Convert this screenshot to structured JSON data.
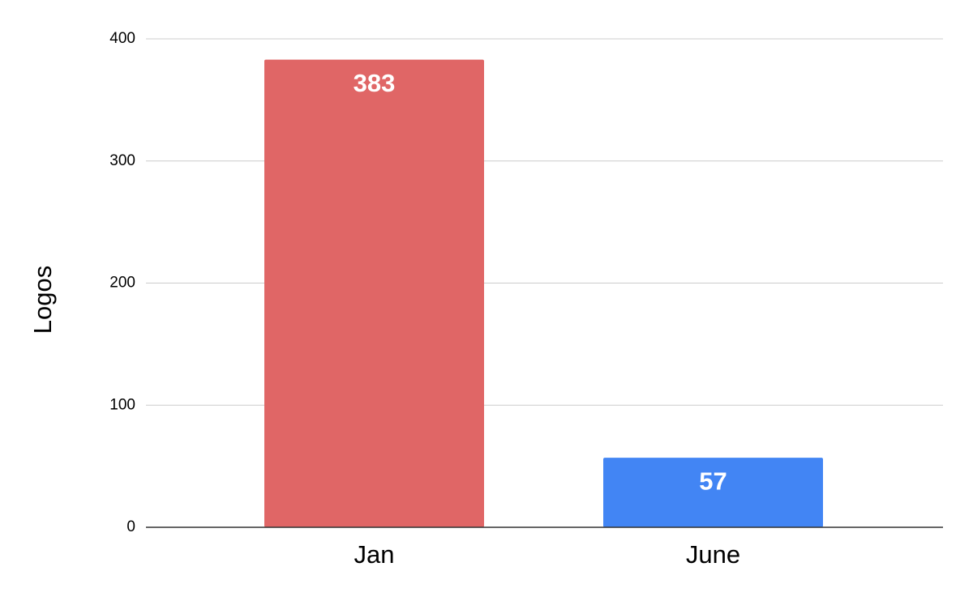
{
  "chart_data": {
    "type": "bar",
    "y_label": "Logos",
    "categories": [
      "Jan",
      "June"
    ],
    "values": [
      383,
      57
    ],
    "colors": [
      "#e06666",
      "#4285f4"
    ],
    "ylim": [
      0,
      400
    ],
    "yticks": [
      0,
      100,
      200,
      300,
      400
    ],
    "grid": true,
    "data_labels": true
  }
}
